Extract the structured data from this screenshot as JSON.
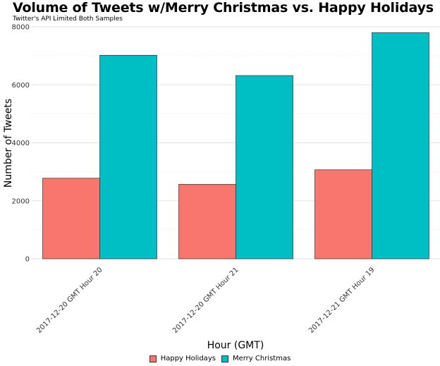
{
  "chart_data": {
    "type": "bar",
    "title": "Volume of Tweets w/Merry Christmas vs. Happy Holidays",
    "subtitle": "Twitter's API Limited Both Samples",
    "xlabel": "Hour (GMT)",
    "ylabel": "Number of Tweets",
    "categories": [
      "2017-12-20 GMT Hour 20",
      "2017-12-20 GMT Hour 21",
      "2017-12-21 GMT Hour 19"
    ],
    "series": [
      {
        "name": "Happy Holidays",
        "color": "#F8766D",
        "values": [
          2780,
          2570,
          3070
        ]
      },
      {
        "name": "Merry Christmas",
        "color": "#00BFC4",
        "values": [
          7020,
          6320,
          7800
        ]
      }
    ],
    "ylim": [
      0,
      8000
    ],
    "yticks": [
      0,
      2000,
      4000,
      6000,
      8000
    ],
    "grid": true,
    "legend_position": "bottom"
  }
}
